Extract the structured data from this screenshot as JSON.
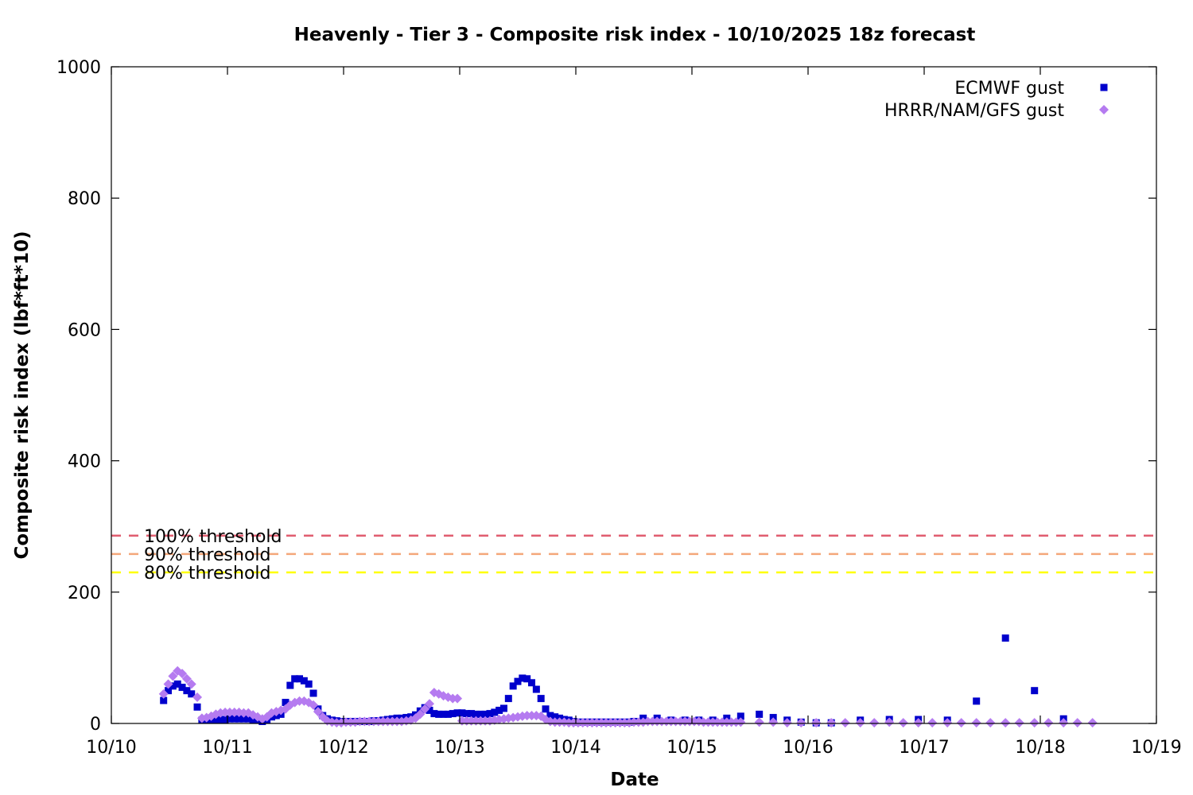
{
  "chart_data": {
    "type": "scatter",
    "title": "Heavenly - Tier 3 - Composite risk index - 10/10/2025 18z forecast",
    "xlabel": "Date",
    "ylabel": "Composite risk index (lbf*ft*10)",
    "xlim": [
      "10/10",
      "10/19"
    ],
    "ylim": [
      0,
      1000
    ],
    "x_ticks": [
      "10/10",
      "10/11",
      "10/12",
      "10/13",
      "10/14",
      "10/15",
      "10/16",
      "10/17",
      "10/18",
      "10/19"
    ],
    "y_ticks": [
      0,
      200,
      400,
      600,
      800,
      1000
    ],
    "grid": false,
    "legend_position": "top-right",
    "thresholds": [
      {
        "label": "100% threshold",
        "value": 286,
        "color": "#e05d6f"
      },
      {
        "label": "90% threshold",
        "value": 258,
        "color": "#f4a77a"
      },
      {
        "label": "80% threshold",
        "value": 230,
        "color": "#ffff00"
      }
    ],
    "series": [
      {
        "name": "ECMWF gust",
        "marker": "square",
        "color": "#0000cc",
        "points": [
          [
            10.45,
            35
          ],
          [
            10.49,
            50
          ],
          [
            10.53,
            57
          ],
          [
            10.57,
            60
          ],
          [
            10.61,
            55
          ],
          [
            10.65,
            50
          ],
          [
            10.69,
            45
          ],
          [
            10.74,
            25
          ],
          [
            10.78,
            5
          ],
          [
            10.82,
            5
          ],
          [
            10.86,
            5
          ],
          [
            10.9,
            5
          ],
          [
            10.94,
            6
          ],
          [
            10.98,
            6
          ],
          [
            11.02,
            7
          ],
          [
            11.06,
            7
          ],
          [
            11.1,
            7
          ],
          [
            11.14,
            7
          ],
          [
            11.18,
            7
          ],
          [
            11.22,
            6
          ],
          [
            11.26,
            5
          ],
          [
            11.3,
            3
          ],
          [
            11.34,
            5
          ],
          [
            11.38,
            10
          ],
          [
            11.42,
            12
          ],
          [
            11.46,
            14
          ],
          [
            11.5,
            32
          ],
          [
            11.54,
            58
          ],
          [
            11.58,
            68
          ],
          [
            11.62,
            68
          ],
          [
            11.66,
            65
          ],
          [
            11.7,
            60
          ],
          [
            11.74,
            46
          ],
          [
            11.78,
            22
          ],
          [
            11.82,
            12
          ],
          [
            11.86,
            7
          ],
          [
            11.9,
            5
          ],
          [
            11.94,
            4
          ],
          [
            11.98,
            3
          ],
          [
            12.02,
            3
          ],
          [
            12.06,
            3
          ],
          [
            12.1,
            3
          ],
          [
            12.14,
            3
          ],
          [
            12.18,
            3
          ],
          [
            12.22,
            3
          ],
          [
            12.26,
            4
          ],
          [
            12.3,
            4
          ],
          [
            12.34,
            5
          ],
          [
            12.38,
            6
          ],
          [
            12.42,
            7
          ],
          [
            12.46,
            8
          ],
          [
            12.5,
            8
          ],
          [
            12.54,
            9
          ],
          [
            12.58,
            10
          ],
          [
            12.62,
            13
          ],
          [
            12.66,
            19
          ],
          [
            12.7,
            24
          ],
          [
            12.74,
            20
          ],
          [
            12.78,
            15
          ],
          [
            12.82,
            14
          ],
          [
            12.86,
            14
          ],
          [
            12.9,
            14
          ],
          [
            12.94,
            15
          ],
          [
            12.98,
            16
          ],
          [
            13.02,
            16
          ],
          [
            13.06,
            15
          ],
          [
            13.1,
            15
          ],
          [
            13.14,
            14
          ],
          [
            13.18,
            14
          ],
          [
            13.22,
            14
          ],
          [
            13.26,
            15
          ],
          [
            13.3,
            17
          ],
          [
            13.34,
            20
          ],
          [
            13.38,
            23
          ],
          [
            13.42,
            38
          ],
          [
            13.46,
            57
          ],
          [
            13.5,
            64
          ],
          [
            13.54,
            69
          ],
          [
            13.58,
            68
          ],
          [
            13.62,
            62
          ],
          [
            13.66,
            52
          ],
          [
            13.7,
            38
          ],
          [
            13.74,
            22
          ],
          [
            13.78,
            12
          ],
          [
            13.82,
            10
          ],
          [
            13.86,
            8
          ],
          [
            13.9,
            6
          ],
          [
            13.94,
            5
          ],
          [
            13.98,
            3
          ],
          [
            14.02,
            2
          ],
          [
            14.06,
            2
          ],
          [
            14.1,
            2
          ],
          [
            14.14,
            2
          ],
          [
            14.18,
            2
          ],
          [
            14.22,
            2
          ],
          [
            14.26,
            2
          ],
          [
            14.3,
            2
          ],
          [
            14.34,
            2
          ],
          [
            14.38,
            2
          ],
          [
            14.42,
            2
          ],
          [
            14.46,
            2
          ],
          [
            14.5,
            3
          ],
          [
            14.58,
            8
          ],
          [
            14.7,
            8
          ],
          [
            14.82,
            5
          ],
          [
            14.94,
            5
          ],
          [
            15.06,
            5
          ],
          [
            15.18,
            5
          ],
          [
            15.3,
            8
          ],
          [
            15.42,
            11
          ],
          [
            15.58,
            14
          ],
          [
            15.7,
            9
          ],
          [
            15.82,
            5
          ],
          [
            15.94,
            2
          ],
          [
            16.07,
            1
          ],
          [
            16.2,
            1
          ],
          [
            16.45,
            5
          ],
          [
            16.7,
            6
          ],
          [
            16.95,
            6
          ],
          [
            17.2,
            5
          ],
          [
            17.45,
            34
          ],
          [
            17.7,
            130
          ],
          [
            17.95,
            50
          ],
          [
            18.2,
            7
          ]
        ]
      },
      {
        "name": "HRRR/NAM/GFS gust",
        "marker": "diamond",
        "color": "#b57bf0",
        "points": [
          [
            10.45,
            45
          ],
          [
            10.49,
            60
          ],
          [
            10.53,
            72
          ],
          [
            10.57,
            80
          ],
          [
            10.61,
            76
          ],
          [
            10.65,
            68
          ],
          [
            10.69,
            60
          ],
          [
            10.74,
            40
          ],
          [
            10.78,
            8
          ],
          [
            10.82,
            9
          ],
          [
            10.86,
            11
          ],
          [
            10.9,
            14
          ],
          [
            10.94,
            16
          ],
          [
            10.98,
            17
          ],
          [
            11.02,
            17
          ],
          [
            11.06,
            17
          ],
          [
            11.1,
            17
          ],
          [
            11.14,
            16
          ],
          [
            11.18,
            16
          ],
          [
            11.22,
            13
          ],
          [
            11.26,
            10
          ],
          [
            11.3,
            7
          ],
          [
            11.34,
            10
          ],
          [
            11.38,
            16
          ],
          [
            11.42,
            18
          ],
          [
            11.46,
            20
          ],
          [
            11.5,
            22
          ],
          [
            11.54,
            28
          ],
          [
            11.58,
            32
          ],
          [
            11.62,
            34
          ],
          [
            11.66,
            34
          ],
          [
            11.7,
            32
          ],
          [
            11.74,
            28
          ],
          [
            11.78,
            18
          ],
          [
            11.82,
            10
          ],
          [
            11.86,
            4
          ],
          [
            11.9,
            2
          ],
          [
            11.94,
            1
          ],
          [
            11.98,
            1
          ],
          [
            12.02,
            2
          ],
          [
            12.06,
            2
          ],
          [
            12.1,
            2
          ],
          [
            12.14,
            3
          ],
          [
            12.18,
            3
          ],
          [
            12.22,
            3
          ],
          [
            12.26,
            3
          ],
          [
            12.3,
            3
          ],
          [
            12.34,
            3
          ],
          [
            12.38,
            3
          ],
          [
            12.42,
            3
          ],
          [
            12.46,
            3
          ],
          [
            12.5,
            3
          ],
          [
            12.54,
            4
          ],
          [
            12.58,
            5
          ],
          [
            12.62,
            8
          ],
          [
            12.66,
            14
          ],
          [
            12.7,
            22
          ],
          [
            12.74,
            30
          ],
          [
            12.78,
            47
          ],
          [
            12.82,
            45
          ],
          [
            12.86,
            42
          ],
          [
            12.9,
            40
          ],
          [
            12.94,
            38
          ],
          [
            12.98,
            38
          ],
          [
            13.02,
            4
          ],
          [
            13.06,
            4
          ],
          [
            13.1,
            4
          ],
          [
            13.14,
            4
          ],
          [
            13.18,
            4
          ],
          [
            13.22,
            4
          ],
          [
            13.26,
            4
          ],
          [
            13.3,
            5
          ],
          [
            13.34,
            6
          ],
          [
            13.38,
            7
          ],
          [
            13.42,
            8
          ],
          [
            13.46,
            9
          ],
          [
            13.5,
            10
          ],
          [
            13.54,
            11
          ],
          [
            13.58,
            12
          ],
          [
            13.62,
            12
          ],
          [
            13.66,
            12
          ],
          [
            13.7,
            11
          ],
          [
            13.74,
            6
          ],
          [
            13.78,
            3
          ],
          [
            13.82,
            2
          ],
          [
            13.86,
            2
          ],
          [
            13.9,
            2
          ],
          [
            13.94,
            1
          ],
          [
            13.98,
            1
          ],
          [
            14.02,
            1
          ],
          [
            14.06,
            1
          ],
          [
            14.1,
            1
          ],
          [
            14.14,
            1
          ],
          [
            14.18,
            1
          ],
          [
            14.22,
            1
          ],
          [
            14.26,
            1
          ],
          [
            14.3,
            1
          ],
          [
            14.34,
            1
          ],
          [
            14.38,
            1
          ],
          [
            14.42,
            1
          ],
          [
            14.46,
            1
          ],
          [
            14.5,
            2
          ],
          [
            14.54,
            2
          ],
          [
            14.58,
            2
          ],
          [
            14.62,
            3
          ],
          [
            14.66,
            3
          ],
          [
            14.7,
            3
          ],
          [
            14.74,
            3
          ],
          [
            14.78,
            3
          ],
          [
            14.82,
            3
          ],
          [
            14.86,
            3
          ],
          [
            14.9,
            3
          ],
          [
            14.94,
            3
          ],
          [
            14.98,
            3
          ],
          [
            15.02,
            3
          ],
          [
            15.06,
            3
          ],
          [
            15.1,
            2
          ],
          [
            15.14,
            2
          ],
          [
            15.18,
            2
          ],
          [
            15.22,
            2
          ],
          [
            15.26,
            2
          ],
          [
            15.3,
            2
          ],
          [
            15.34,
            2
          ],
          [
            15.38,
            2
          ],
          [
            15.42,
            2
          ],
          [
            15.58,
            2
          ],
          [
            15.7,
            2
          ],
          [
            15.82,
            1
          ],
          [
            15.94,
            1
          ],
          [
            16.07,
            1
          ],
          [
            16.2,
            1
          ],
          [
            16.32,
            1
          ],
          [
            16.45,
            1
          ],
          [
            16.57,
            1
          ],
          [
            16.7,
            2
          ],
          [
            16.82,
            1
          ],
          [
            16.95,
            1
          ],
          [
            17.07,
            1
          ],
          [
            17.2,
            1
          ],
          [
            17.32,
            1
          ],
          [
            17.45,
            1
          ],
          [
            17.57,
            1
          ],
          [
            17.7,
            1
          ],
          [
            17.82,
            1
          ],
          [
            17.95,
            1
          ],
          [
            18.07,
            1
          ],
          [
            18.2,
            1
          ],
          [
            18.32,
            1
          ],
          [
            18.45,
            1
          ]
        ]
      }
    ]
  }
}
